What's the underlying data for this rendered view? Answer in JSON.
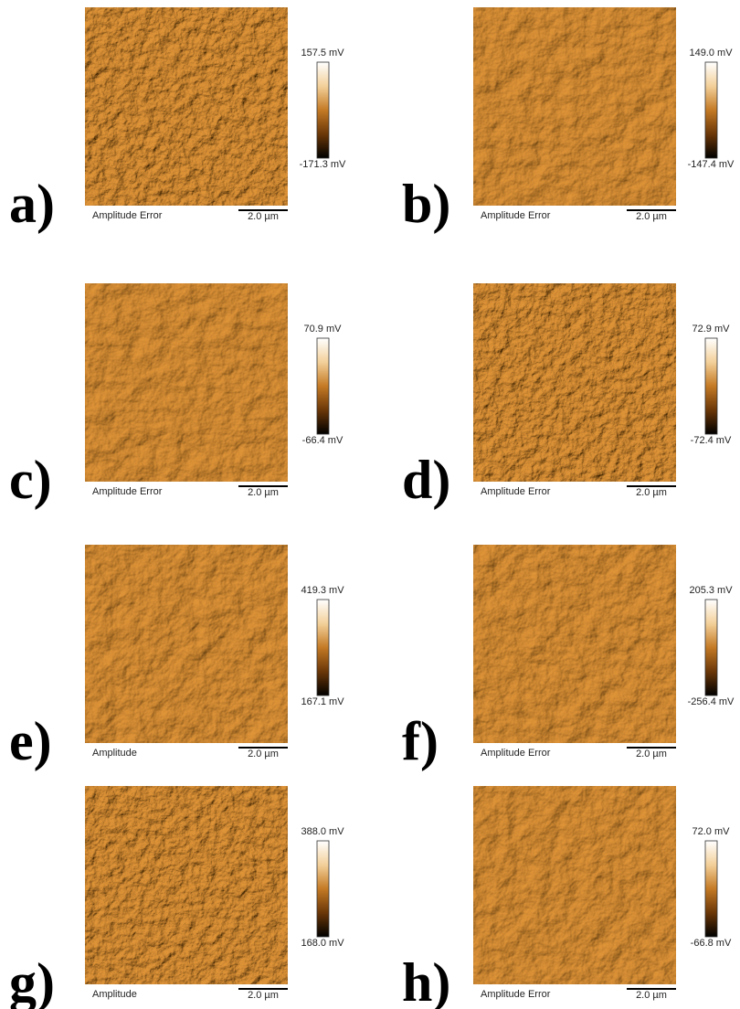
{
  "panels": [
    {
      "label": "a)",
      "max": "157.5 mV",
      "min": "-171.3 mV",
      "caption": "Amplitude Error",
      "scale": "2.0 µm"
    },
    {
      "label": "b)",
      "max": "149.0 mV",
      "min": "-147.4 mV",
      "caption": "Amplitude Error",
      "scale": "2.0 µm"
    },
    {
      "label": "c)",
      "max": "70.9 mV",
      "min": "-66.4 mV",
      "caption": "Amplitude Error",
      "scale": "2.0 µm"
    },
    {
      "label": "d)",
      "max": "72.9 mV",
      "min": "-72.4 mV",
      "caption": "Amplitude Error",
      "scale": "2.0 µm"
    },
    {
      "label": "e)",
      "max": "419.3 mV",
      "min": "167.1 mV",
      "caption": "Amplitude",
      "scale": "2.0 µm"
    },
    {
      "label": "f)",
      "max": "205.3 mV",
      "min": "-256.4 mV",
      "caption": "Amplitude Error",
      "scale": "2.0 µm"
    },
    {
      "label": "g)",
      "max": "388.0 mV",
      "min": "168.0 mV",
      "caption": "Amplitude",
      "scale": "2.0 µm"
    },
    {
      "label": "h)",
      "max": "72.0 mV",
      "min": "-66.8 mV",
      "caption": "Amplitude Error",
      "scale": "2.0 µm"
    }
  ]
}
